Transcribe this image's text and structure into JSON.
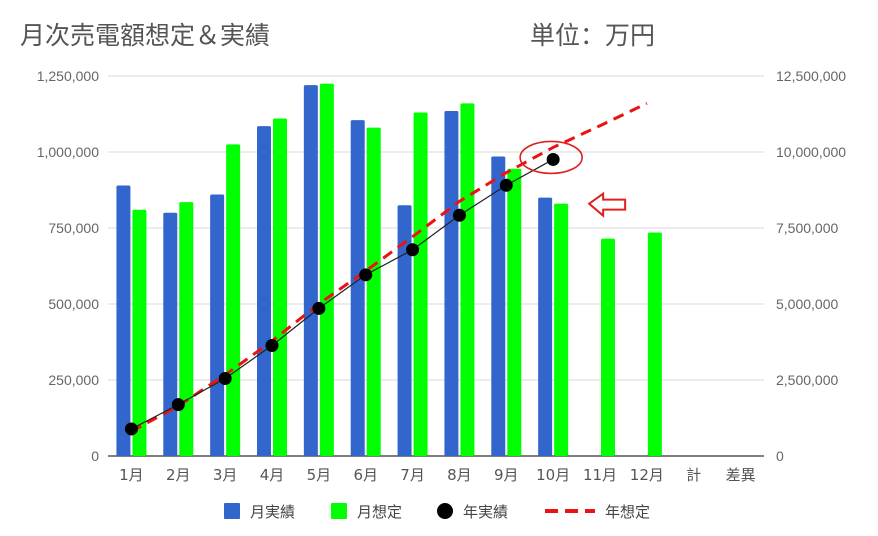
{
  "chart_data": {
    "type": "bar",
    "title": "月次売電額想定＆実績",
    "unit_label": "単位：万円",
    "categories": [
      "1月",
      "2月",
      "3月",
      "4月",
      "5月",
      "6月",
      "7月",
      "8月",
      "9月",
      "10月",
      "11月",
      "12月",
      "計",
      "差異"
    ],
    "y_left": {
      "min": 0,
      "max": 1250000,
      "ticks": [
        "0",
        "250,000",
        "500,000",
        "750,000",
        "1,000,000",
        "1,250,000"
      ]
    },
    "y_right": {
      "min": 0,
      "max": 12500000,
      "ticks": [
        "0",
        "2,500,000",
        "5,000,000",
        "7,500,000",
        "10,000,000",
        "12,500,000"
      ]
    },
    "gridlines": true,
    "legend_position": "bottom",
    "series": [
      {
        "name": "月実績",
        "kind": "bar",
        "axis": "left",
        "color": "#3366cc",
        "values": [
          890000,
          800000,
          860000,
          1085000,
          1220000,
          1105000,
          825000,
          1135000,
          985000,
          850000,
          null,
          null,
          null,
          null
        ]
      },
      {
        "name": "月想定",
        "kind": "bar",
        "axis": "left",
        "color": "#00ff00",
        "values": [
          810000,
          835000,
          1025000,
          1110000,
          1225000,
          1080000,
          1130000,
          1160000,
          945000,
          830000,
          715000,
          735000,
          null,
          null
        ]
      },
      {
        "name": "年実績",
        "kind": "line-points",
        "axis": "right",
        "color": "#000000",
        "values": [
          890000,
          1690000,
          2550000,
          3635000,
          4855000,
          5960000,
          6785000,
          7920000,
          8905000,
          9755000,
          null,
          null,
          null,
          null
        ]
      },
      {
        "name": "年想定",
        "kind": "dashed-line",
        "axis": "right",
        "color": "#ee1111",
        "values": [
          810000,
          1645000,
          2670000,
          3780000,
          5005000,
          6085000,
          7215000,
          8375000,
          9320000,
          10150000,
          10865000,
          11600000,
          null,
          null
        ]
      }
    ],
    "annotations": [
      {
        "type": "ellipse",
        "color": "#e02020",
        "target": "年実績 10月"
      },
      {
        "type": "arrow-left",
        "color": "#e02020",
        "target": "月想定 10月"
      }
    ]
  }
}
